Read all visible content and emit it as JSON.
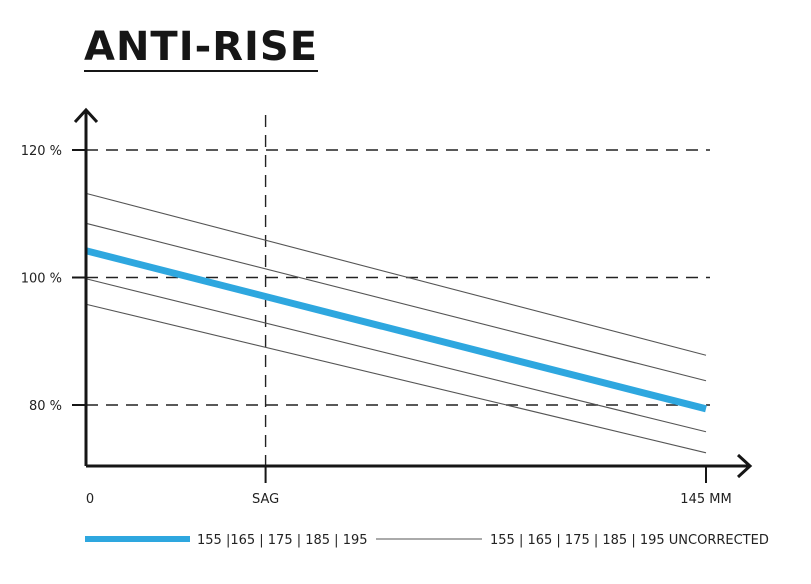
{
  "title": "ANTI-RISE",
  "colors": {
    "main": "#2ea7df",
    "thin": "#555555",
    "axis": "#161616",
    "grid": "#222222"
  },
  "chart_data": {
    "type": "line",
    "title": "ANTI-RISE",
    "xlim": [
      0,
      145
    ],
    "ylim": [
      69.5,
      126
    ],
    "x_ticks": [
      {
        "x": 0,
        "label": "0"
      },
      {
        "x": 42,
        "label": "SAG"
      },
      {
        "x": 145,
        "label": "145 MM"
      }
    ],
    "y_ticks": [
      {
        "y": 80,
        "label": "80 %"
      },
      {
        "y": 100,
        "label": "100 %"
      },
      {
        "y": 120,
        "label": "120 %"
      }
    ],
    "grid": "dashed horizontal at y ticks, dashed vertical at SAG",
    "series": [
      {
        "name": "155 |165 | 175 | 185 | 195",
        "style": "thick",
        "x": [
          0,
          145
        ],
        "y": [
          104.2,
          79.4
        ]
      },
      {
        "name": "155 | 165 | 175 | 185 | 195 UNCORRECTED",
        "style": "thin",
        "x": [
          0,
          145
        ],
        "y": [
          113.2,
          87.8
        ]
      },
      {
        "style": "thin",
        "x": [
          0,
          145
        ],
        "y": [
          108.5,
          83.8
        ]
      },
      {
        "style": "thin",
        "x": [
          0,
          145
        ],
        "y": [
          99.8,
          75.8
        ]
      },
      {
        "style": "thin",
        "x": [
          0,
          145
        ],
        "y": [
          95.8,
          72.5
        ]
      }
    ],
    "legend_position": "bottom"
  }
}
